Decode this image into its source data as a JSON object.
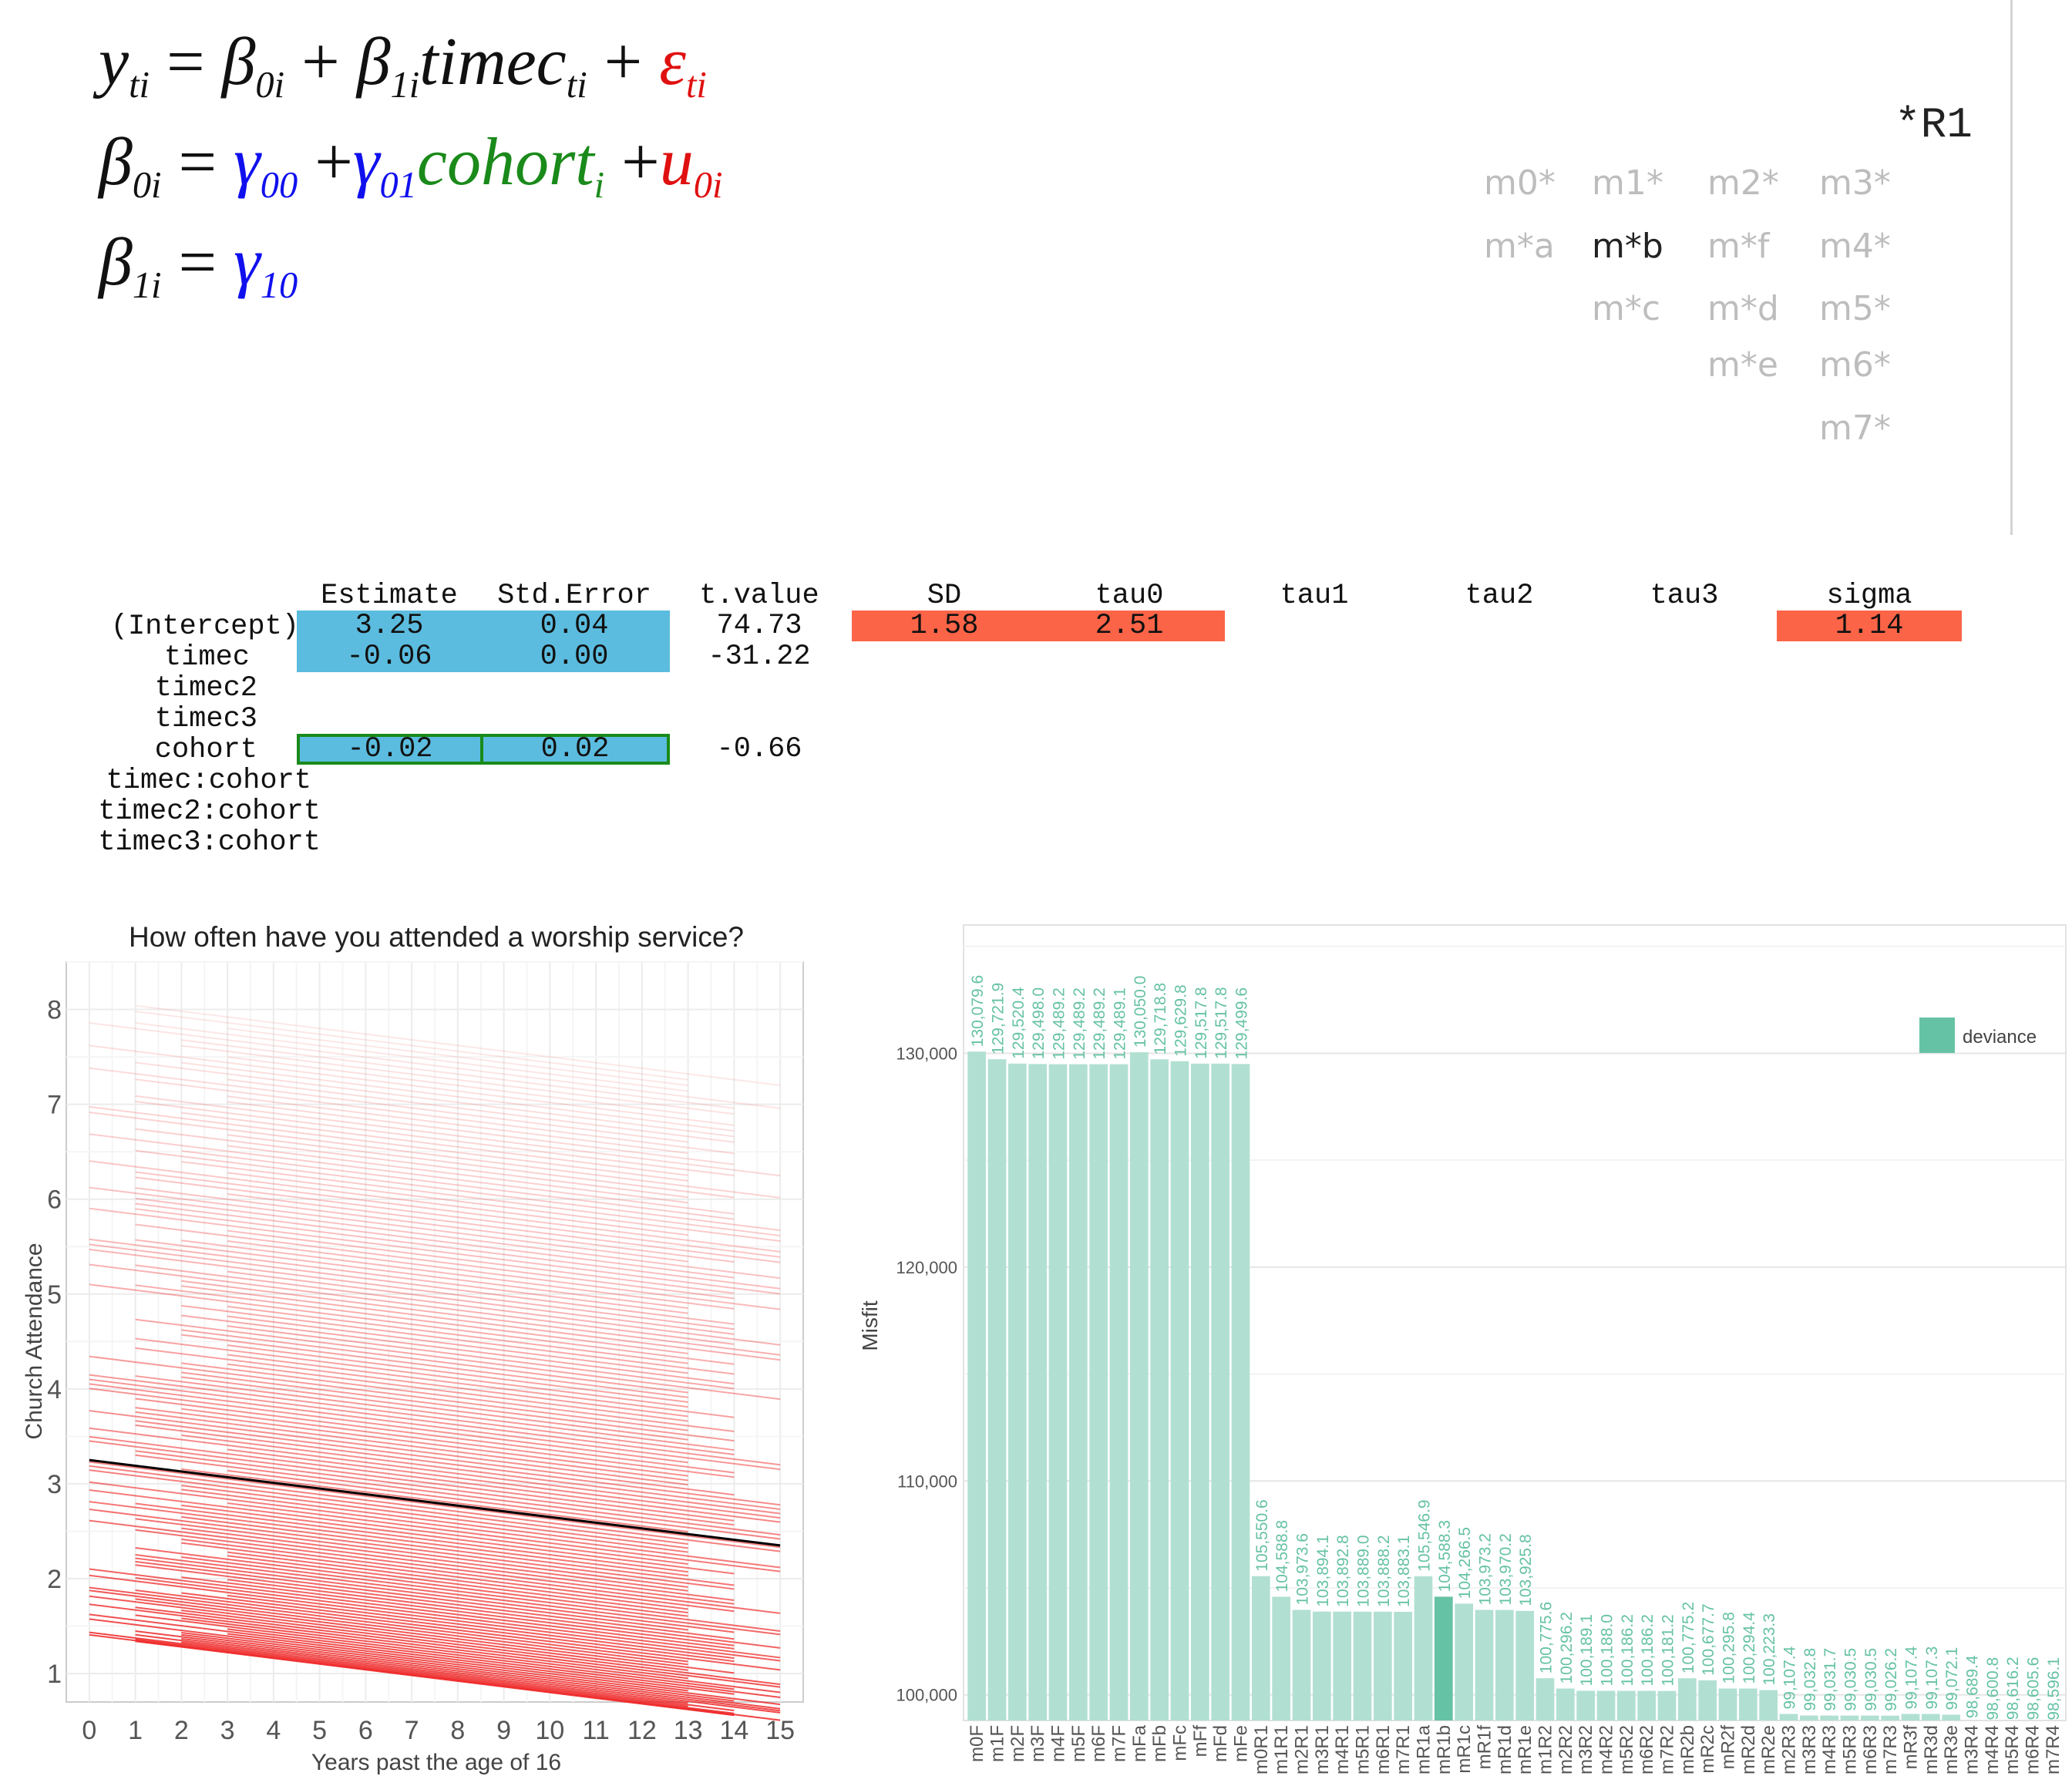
{
  "equations": {
    "line1": {
      "y": "y",
      "y_sub": "ti",
      "eq": "=",
      "b0": "β",
      "b0_sub": "0i",
      "plus1": "+",
      "b1": "β",
      "b1_sub": "1i",
      "timec": "timec",
      "timec_sub": "ti",
      "plus2": "+",
      "eps": "ε",
      "eps_sub": "ti"
    },
    "line2": {
      "b0": "β",
      "b0_sub": "0i",
      "eq": "=",
      "g00": "γ",
      "g00_sub": "00",
      "plus1": "+",
      "g01": "γ",
      "g01_sub": "01",
      "cohort": "cohort",
      "cohort_sub": "i",
      "plus2": "+",
      "u0": "u",
      "u0_sub": "0i"
    },
    "line3": {
      "b1": "β",
      "b1_sub": "1i",
      "eq": "=",
      "g10": "γ",
      "g10_sub": "10"
    }
  },
  "model_selector": {
    "title": "*R1",
    "labels": [
      {
        "text": "m0*",
        "active": false
      },
      {
        "text": "m1*",
        "active": false
      },
      {
        "text": "m2*",
        "active": false
      },
      {
        "text": "m3*",
        "active": false
      },
      {
        "text": "m*a",
        "active": false
      },
      {
        "text": "m*b",
        "active": true
      },
      {
        "text": "m*f",
        "active": false
      },
      {
        "text": "m4*",
        "active": false
      },
      {
        "text": "m*c",
        "active": false
      },
      {
        "text": "m*d",
        "active": false
      },
      {
        "text": "m5*",
        "active": false
      },
      {
        "text": "m*e",
        "active": false
      },
      {
        "text": "m6*",
        "active": false
      },
      {
        "text": "m7*",
        "active": false
      }
    ]
  },
  "table": {
    "headers": [
      "Estimate",
      "Std.Error",
      "t.value",
      "SD",
      "tau0",
      "tau1",
      "tau2",
      "tau3",
      "sigma"
    ],
    "rows": [
      "(Intercept)",
      "timec",
      "timec2",
      "timec3",
      "cohort",
      "timec:cohort",
      "timec2:cohort",
      "timec3:cohort"
    ],
    "intercept": {
      "estimate": "3.25",
      "se": "0.04",
      "t": "74.73",
      "sd": "1.58",
      "tau0": "2.51",
      "sigma": "1.14"
    },
    "timec": {
      "estimate": "-0.06",
      "se": "0.00",
      "t": "-31.22"
    },
    "cohort": {
      "estimate": "-0.02",
      "se": "0.02",
      "t": "-0.66"
    },
    "colors": {
      "fixed": "#5bbcdf",
      "random": "#fc6447",
      "highlight_border": "#1a8a1a"
    }
  },
  "chart_data": [
    {
      "type": "line",
      "title": "How often have you attended a worship service?",
      "xlabel": "Years past the age of 16",
      "ylabel": "Church Attendance",
      "xlim": [
        -0.5,
        15.5
      ],
      "ylim": [
        0.7,
        8.5
      ],
      "xticks": [
        "0",
        "1",
        "2",
        "3",
        "4",
        "5",
        "6",
        "7",
        "8",
        "9",
        "10",
        "11",
        "12",
        "13",
        "14",
        "15"
      ],
      "yticks": [
        "1",
        "2",
        "3",
        "4",
        "5",
        "6",
        "7",
        "8"
      ],
      "grid": true,
      "series": [
        {
          "role": "fixed-effect",
          "color": "#000000",
          "x": [
            0,
            15
          ],
          "y": [
            3.25,
            2.35
          ]
        },
        {
          "role": "individual-trajectories",
          "color": "#ee2020",
          "slope": -0.06,
          "intercept_range": [
            1.4,
            8.1
          ],
          "count": 150
        }
      ]
    },
    {
      "type": "bar",
      "ylabel": "Misfit",
      "ylim": [
        98800,
        136000
      ],
      "yticks": [
        "100,000",
        "110,000",
        "120,000",
        "130,000"
      ],
      "legend": {
        "label": "deviance",
        "position": "top-right"
      },
      "colors": {
        "bar": "#b1e0d2",
        "highlight": "#66c2a5",
        "label": "#66c2a5"
      },
      "highlighted_category": "mR1b",
      "categories": [
        "m0F",
        "m1F",
        "m2F",
        "m3F",
        "m4F",
        "m5F",
        "m6F",
        "m7F",
        "mFa",
        "mFb",
        "mFc",
        "mFf",
        "mFd",
        "mFe",
        "m0R1",
        "m1R1",
        "m2R1",
        "m3R1",
        "m4R1",
        "m5R1",
        "m6R1",
        "m7R1",
        "mR1a",
        "mR1b",
        "mR1c",
        "mR1f",
        "mR1d",
        "mR1e",
        "m1R2",
        "m2R2",
        "m3R2",
        "m4R2",
        "m5R2",
        "m6R2",
        "m7R2",
        "mR2b",
        "mR2c",
        "mR2f",
        "mR2d",
        "mR2e",
        "m2R3",
        "m3R3",
        "m4R3",
        "m5R3",
        "m6R3",
        "m7R3",
        "mR3f",
        "mR3d",
        "mR3e",
        "m3R4",
        "m4R4",
        "m5R4",
        "m6R4",
        "m7R4"
      ],
      "labels": [
        "130,079.6",
        "129,721.9",
        "129,520.4",
        "129,498.0",
        "129,489.2",
        "129,489.2",
        "129,489.2",
        "129,489.1",
        "130,050.0",
        "129,718.8",
        "129,629.8",
        "129,517.8",
        "129,517.8",
        "129,499.6",
        "105,550.6",
        "104,588.8",
        "103,973.6",
        "103,894.1",
        "103,892.8",
        "103,889.0",
        "103,888.2",
        "103,883.1",
        "105,546.9",
        "104,588.3",
        "104,266.5",
        "103,973.2",
        "103,970.2",
        "103,925.8",
        "100,775.6",
        "100,296.2",
        "100,189.1",
        "100,188.0",
        "100,186.2",
        "100,186.2",
        "100,181.2",
        "100,775.2",
        "100,677.7",
        "100,295.8",
        "100,294.4",
        "100,223.3",
        "99,107.4",
        "99,032.8",
        "99,031.7",
        "99,030.5",
        "99,030.5",
        "99,026.2",
        "99,107.4",
        "99,107.3",
        "99,072.1",
        "98,689.4",
        "98,600.8",
        "98,616.2",
        "98,605.6",
        "98,596.1"
      ],
      "values": [
        130079.6,
        129721.9,
        129520.4,
        129498.0,
        129489.2,
        129489.2,
        129489.2,
        129489.1,
        130050.0,
        129718.8,
        129629.8,
        129517.8,
        129517.8,
        129499.6,
        105550.6,
        104588.8,
        103973.6,
        103894.1,
        103892.8,
        103889.0,
        103888.2,
        103883.1,
        105546.9,
        104588.3,
        104266.5,
        103973.2,
        103970.2,
        103925.8,
        100775.6,
        100296.2,
        100189.1,
        100188.0,
        100186.2,
        100186.2,
        100181.2,
        100775.2,
        100677.7,
        100295.8,
        100294.4,
        100223.3,
        99107.4,
        99032.8,
        99031.7,
        99030.5,
        99030.5,
        99026.2,
        99107.4,
        99107.3,
        99072.1,
        98689.4,
        98600.8,
        98616.2,
        98605.6,
        98596.1
      ]
    }
  ]
}
